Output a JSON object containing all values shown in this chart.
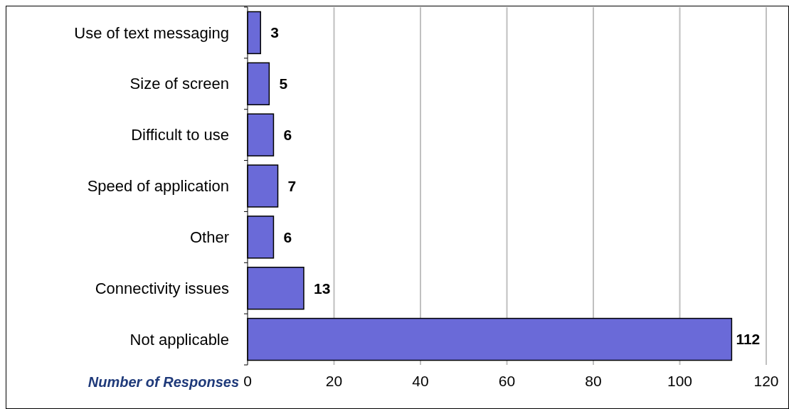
{
  "chart_data": {
    "type": "bar",
    "orientation": "horizontal",
    "xlabel": "Number of Responses",
    "categories": [
      "Use of text messaging",
      "Size of screen",
      "Difficult to use",
      "Speed of application",
      "Other ",
      "Connectivity issues",
      "Not applicable"
    ],
    "values": [
      3,
      5,
      6,
      7,
      6,
      13,
      112
    ],
    "color": "#6a6ad8",
    "xlim": [
      0,
      120
    ],
    "xticks": [
      0,
      20,
      40,
      60,
      80,
      100,
      120
    ],
    "grid": "x",
    "data_labels": true
  }
}
